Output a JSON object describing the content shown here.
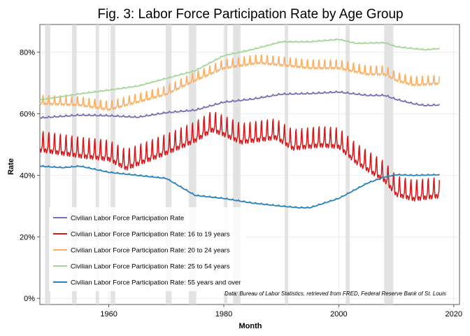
{
  "chart_data": {
    "type": "line",
    "title": "Fig. 3: Labor Force Participation Rate by Age Group",
    "xlabel": "Month",
    "ylabel": "Rate",
    "xlim": [
      1948,
      2021
    ],
    "ylim": [
      -0.02,
      0.89
    ],
    "x_ticks": [
      1960,
      1980,
      2000,
      2020
    ],
    "y_ticks": [
      0,
      0.2,
      0.4,
      0.6,
      0.8
    ],
    "y_tick_labels": [
      "0%",
      "20%",
      "40%",
      "60%",
      "80%"
    ],
    "grid": true,
    "legend_position": "bottom-left",
    "caption": "Data: Bureau of Labor Statistics, retrieved from FRED, Federal Reserve Bank of St. Louis",
    "recessions": [
      [
        1948.9,
        1949.8
      ],
      [
        1953.6,
        1954.4
      ],
      [
        1957.7,
        1958.3
      ],
      [
        1960.3,
        1961.1
      ],
      [
        1969.9,
        1970.9
      ],
      [
        1973.9,
        1975.2
      ],
      [
        1980.1,
        1980.6
      ],
      [
        1981.6,
        1982.9
      ],
      [
        1990.6,
        1991.2
      ],
      [
        2001.2,
        2001.9
      ],
      [
        2007.9,
        2009.5
      ]
    ],
    "series": [
      {
        "name": "Civilian Labor Force Participation Rate",
        "color": "#7570b3",
        "seasonal": 0.005,
        "x": [
          1948,
          1955,
          1960,
          1965,
          1970,
          1975,
          1980,
          1985,
          1990,
          1995,
          2000,
          2005,
          2008,
          2010,
          2013,
          2015,
          2017.5
        ],
        "y": [
          0.587,
          0.596,
          0.594,
          0.589,
          0.604,
          0.612,
          0.638,
          0.648,
          0.664,
          0.666,
          0.671,
          0.66,
          0.66,
          0.647,
          0.633,
          0.627,
          0.629
        ]
      },
      {
        "name": "Civilian Labor Force Participation Rate: 16 to 19 years",
        "color": "#d7191c",
        "seasonal": 0.07,
        "x": [
          1948,
          1955,
          1960,
          1963,
          1970,
          1975,
          1978,
          1980,
          1983,
          1989,
          1992,
          1997,
          2000,
          2003,
          2008,
          2010,
          2013,
          2017.5
        ],
        "y": [
          0.5,
          0.48,
          0.47,
          0.44,
          0.49,
          0.53,
          0.565,
          0.55,
          0.525,
          0.54,
          0.505,
          0.515,
          0.51,
          0.46,
          0.4,
          0.355,
          0.34,
          0.35
        ]
      },
      {
        "name": "Civilian Labor Force Participation Rate: 20 to 24 years",
        "color": "#fdae61",
        "seasonal": 0.03,
        "x": [
          1948,
          1955,
          1960,
          1965,
          1970,
          1975,
          1980,
          1986,
          1990,
          1995,
          2000,
          2005,
          2008,
          2010,
          2013,
          2017.5
        ],
        "y": [
          0.64,
          0.635,
          0.62,
          0.645,
          0.67,
          0.715,
          0.755,
          0.772,
          0.765,
          0.755,
          0.755,
          0.735,
          0.735,
          0.715,
          0.7,
          0.705
        ]
      },
      {
        "name": "Civilian Labor Force Participation Rate: 25 to 54 years",
        "color": "#a6d79a",
        "seasonal": 0.003,
        "x": [
          1948,
          1955,
          1960,
          1965,
          1970,
          1975,
          1980,
          1985,
          1990,
          1995,
          2000,
          2003,
          2008,
          2010,
          2013,
          2015,
          2017.5
        ],
        "y": [
          0.646,
          0.665,
          0.677,
          0.69,
          0.715,
          0.74,
          0.789,
          0.809,
          0.834,
          0.834,
          0.842,
          0.829,
          0.831,
          0.818,
          0.812,
          0.808,
          0.812
        ]
      },
      {
        "name": "Civilian Labor Force Participation Rate: 55 years and over",
        "color": "#2b83ba",
        "seasonal": 0.003,
        "x": [
          1948,
          1952,
          1955,
          1960,
          1965,
          1970,
          1975,
          1980,
          1985,
          1990,
          1993,
          1995,
          2000,
          2005,
          2008,
          2010,
          2013,
          2017.5
        ],
        "y": [
          0.43,
          0.425,
          0.43,
          0.41,
          0.4,
          0.39,
          0.335,
          0.325,
          0.31,
          0.3,
          0.295,
          0.295,
          0.325,
          0.375,
          0.395,
          0.402,
          0.4,
          0.402
        ]
      }
    ]
  }
}
